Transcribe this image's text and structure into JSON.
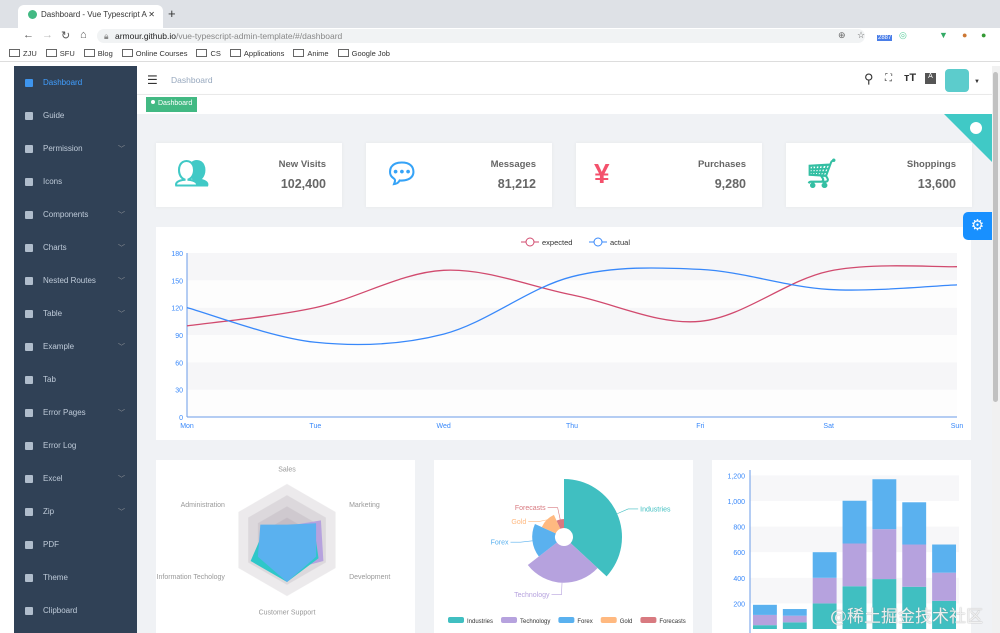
{
  "browser": {
    "tab_title": "Dashboard - Vue Typescript A",
    "url_host": "armour.github.io",
    "url_path": "/vue-typescript-admin-template/#/dashboard",
    "bookmarks": [
      "ZJU",
      "SFU",
      "Blog",
      "Online Courses",
      "CS",
      "Applications",
      "Anime",
      "Google Job"
    ],
    "ext_badge": "2887"
  },
  "sidebar": {
    "items": [
      {
        "label": "Dashboard",
        "icon": "dashboard-icon",
        "active": true,
        "sub": false
      },
      {
        "label": "Guide",
        "icon": "guide-icon",
        "sub": false
      },
      {
        "label": "Permission",
        "icon": "lock-icon",
        "sub": true
      },
      {
        "label": "Icons",
        "icon": "icons-icon",
        "sub": false
      },
      {
        "label": "Components",
        "icon": "components-icon",
        "sub": true
      },
      {
        "label": "Charts",
        "icon": "chart-icon",
        "sub": true
      },
      {
        "label": "Nested Routes",
        "icon": "nested-icon",
        "sub": true
      },
      {
        "label": "Table",
        "icon": "table-icon",
        "sub": true
      },
      {
        "label": "Example",
        "icon": "example-icon",
        "sub": true
      },
      {
        "label": "Tab",
        "icon": "tab-icon",
        "sub": false
      },
      {
        "label": "Error Pages",
        "icon": "404-icon",
        "sub": true
      },
      {
        "label": "Error Log",
        "icon": "bug-icon",
        "sub": false
      },
      {
        "label": "Excel",
        "icon": "excel-icon",
        "sub": true
      },
      {
        "label": "Zip",
        "icon": "zip-icon",
        "sub": true
      },
      {
        "label": "PDF",
        "icon": "pdf-icon",
        "sub": false
      },
      {
        "label": "Theme",
        "icon": "theme-icon",
        "sub": false
      },
      {
        "label": "Clipboard",
        "icon": "clipboard-icon",
        "sub": false
      }
    ]
  },
  "navbar": {
    "breadcrumb": "Dashboard",
    "tag": "Dashboard"
  },
  "cards": [
    {
      "label": "New Visits",
      "value": "102,400",
      "color": "#40c9c6",
      "icon": "peoples-icon"
    },
    {
      "label": "Messages",
      "value": "81,212",
      "color": "#36a3f7",
      "icon": "message-icon"
    },
    {
      "label": "Purchases",
      "value": "9,280",
      "color": "#f4516c",
      "icon": "money-icon"
    },
    {
      "label": "Shoppings",
      "value": "13,600",
      "color": "#34bfa3",
      "icon": "shopping-cart-icon"
    }
  ],
  "chart_data": [
    {
      "type": "line",
      "categories": [
        "Mon",
        "Tue",
        "Wed",
        "Thu",
        "Fri",
        "Sat",
        "Sun"
      ],
      "ylim": [
        0,
        180
      ],
      "yticks": [
        "0",
        "30",
        "60",
        "90",
        "120",
        "150",
        "180"
      ],
      "legend": "top-center",
      "series": [
        {
          "name": "expected",
          "color": "#d14a6e",
          "values": [
            100,
            120,
            161,
            134,
            105,
            160,
            165
          ]
        },
        {
          "name": "actual",
          "color": "#3888fa",
          "values": [
            120,
            82,
            91,
            154,
            162,
            140,
            145
          ]
        }
      ]
    },
    {
      "type": "radar",
      "indicators": [
        "Sales",
        "Administration",
        "Information Techology",
        "Customer Support",
        "Development",
        "Marketing"
      ],
      "max": 20000,
      "series": [
        {
          "color": "#b6a2de",
          "values": [
            5000,
            7000,
            12000,
            11000,
            15000,
            14000
          ]
        },
        {
          "color": "#2ec7c9",
          "values": [
            4000,
            9000,
            15000,
            15000,
            13000,
            11000
          ]
        },
        {
          "color": "#5ab1ef",
          "values": [
            5500,
            11000,
            12000,
            15000,
            12000,
            12000
          ]
        }
      ]
    },
    {
      "type": "pie",
      "rose": true,
      "slices": [
        {
          "name": "Industries",
          "value": 320,
          "color": "#40bfc1"
        },
        {
          "name": "Technology",
          "value": 240,
          "color": "#b6a2de"
        },
        {
          "name": "Forex",
          "value": 149,
          "color": "#5ab1ef"
        },
        {
          "name": "Gold",
          "value": 100,
          "color": "#ffb980"
        },
        {
          "name": "Forecasts",
          "value": 59,
          "color": "#d87a80"
        }
      ],
      "legend": "bottom"
    },
    {
      "type": "bar",
      "stacked": true,
      "yticks": [
        "200",
        "400",
        "600",
        "800",
        "1,000",
        "1,200"
      ],
      "series": [
        {
          "color": "#40bfc1",
          "values": [
            30,
            52,
            200,
            334,
            390,
            330,
            220
          ]
        },
        {
          "color": "#b6a2de",
          "values": [
            80,
            52,
            200,
            334,
            390,
            330,
            220
          ]
        },
        {
          "color": "#5ab1ef",
          "values": [
            79,
            52,
            200,
            334,
            390,
            330,
            220
          ]
        }
      ]
    }
  ],
  "watermark": "@稀土掘金技术社区"
}
